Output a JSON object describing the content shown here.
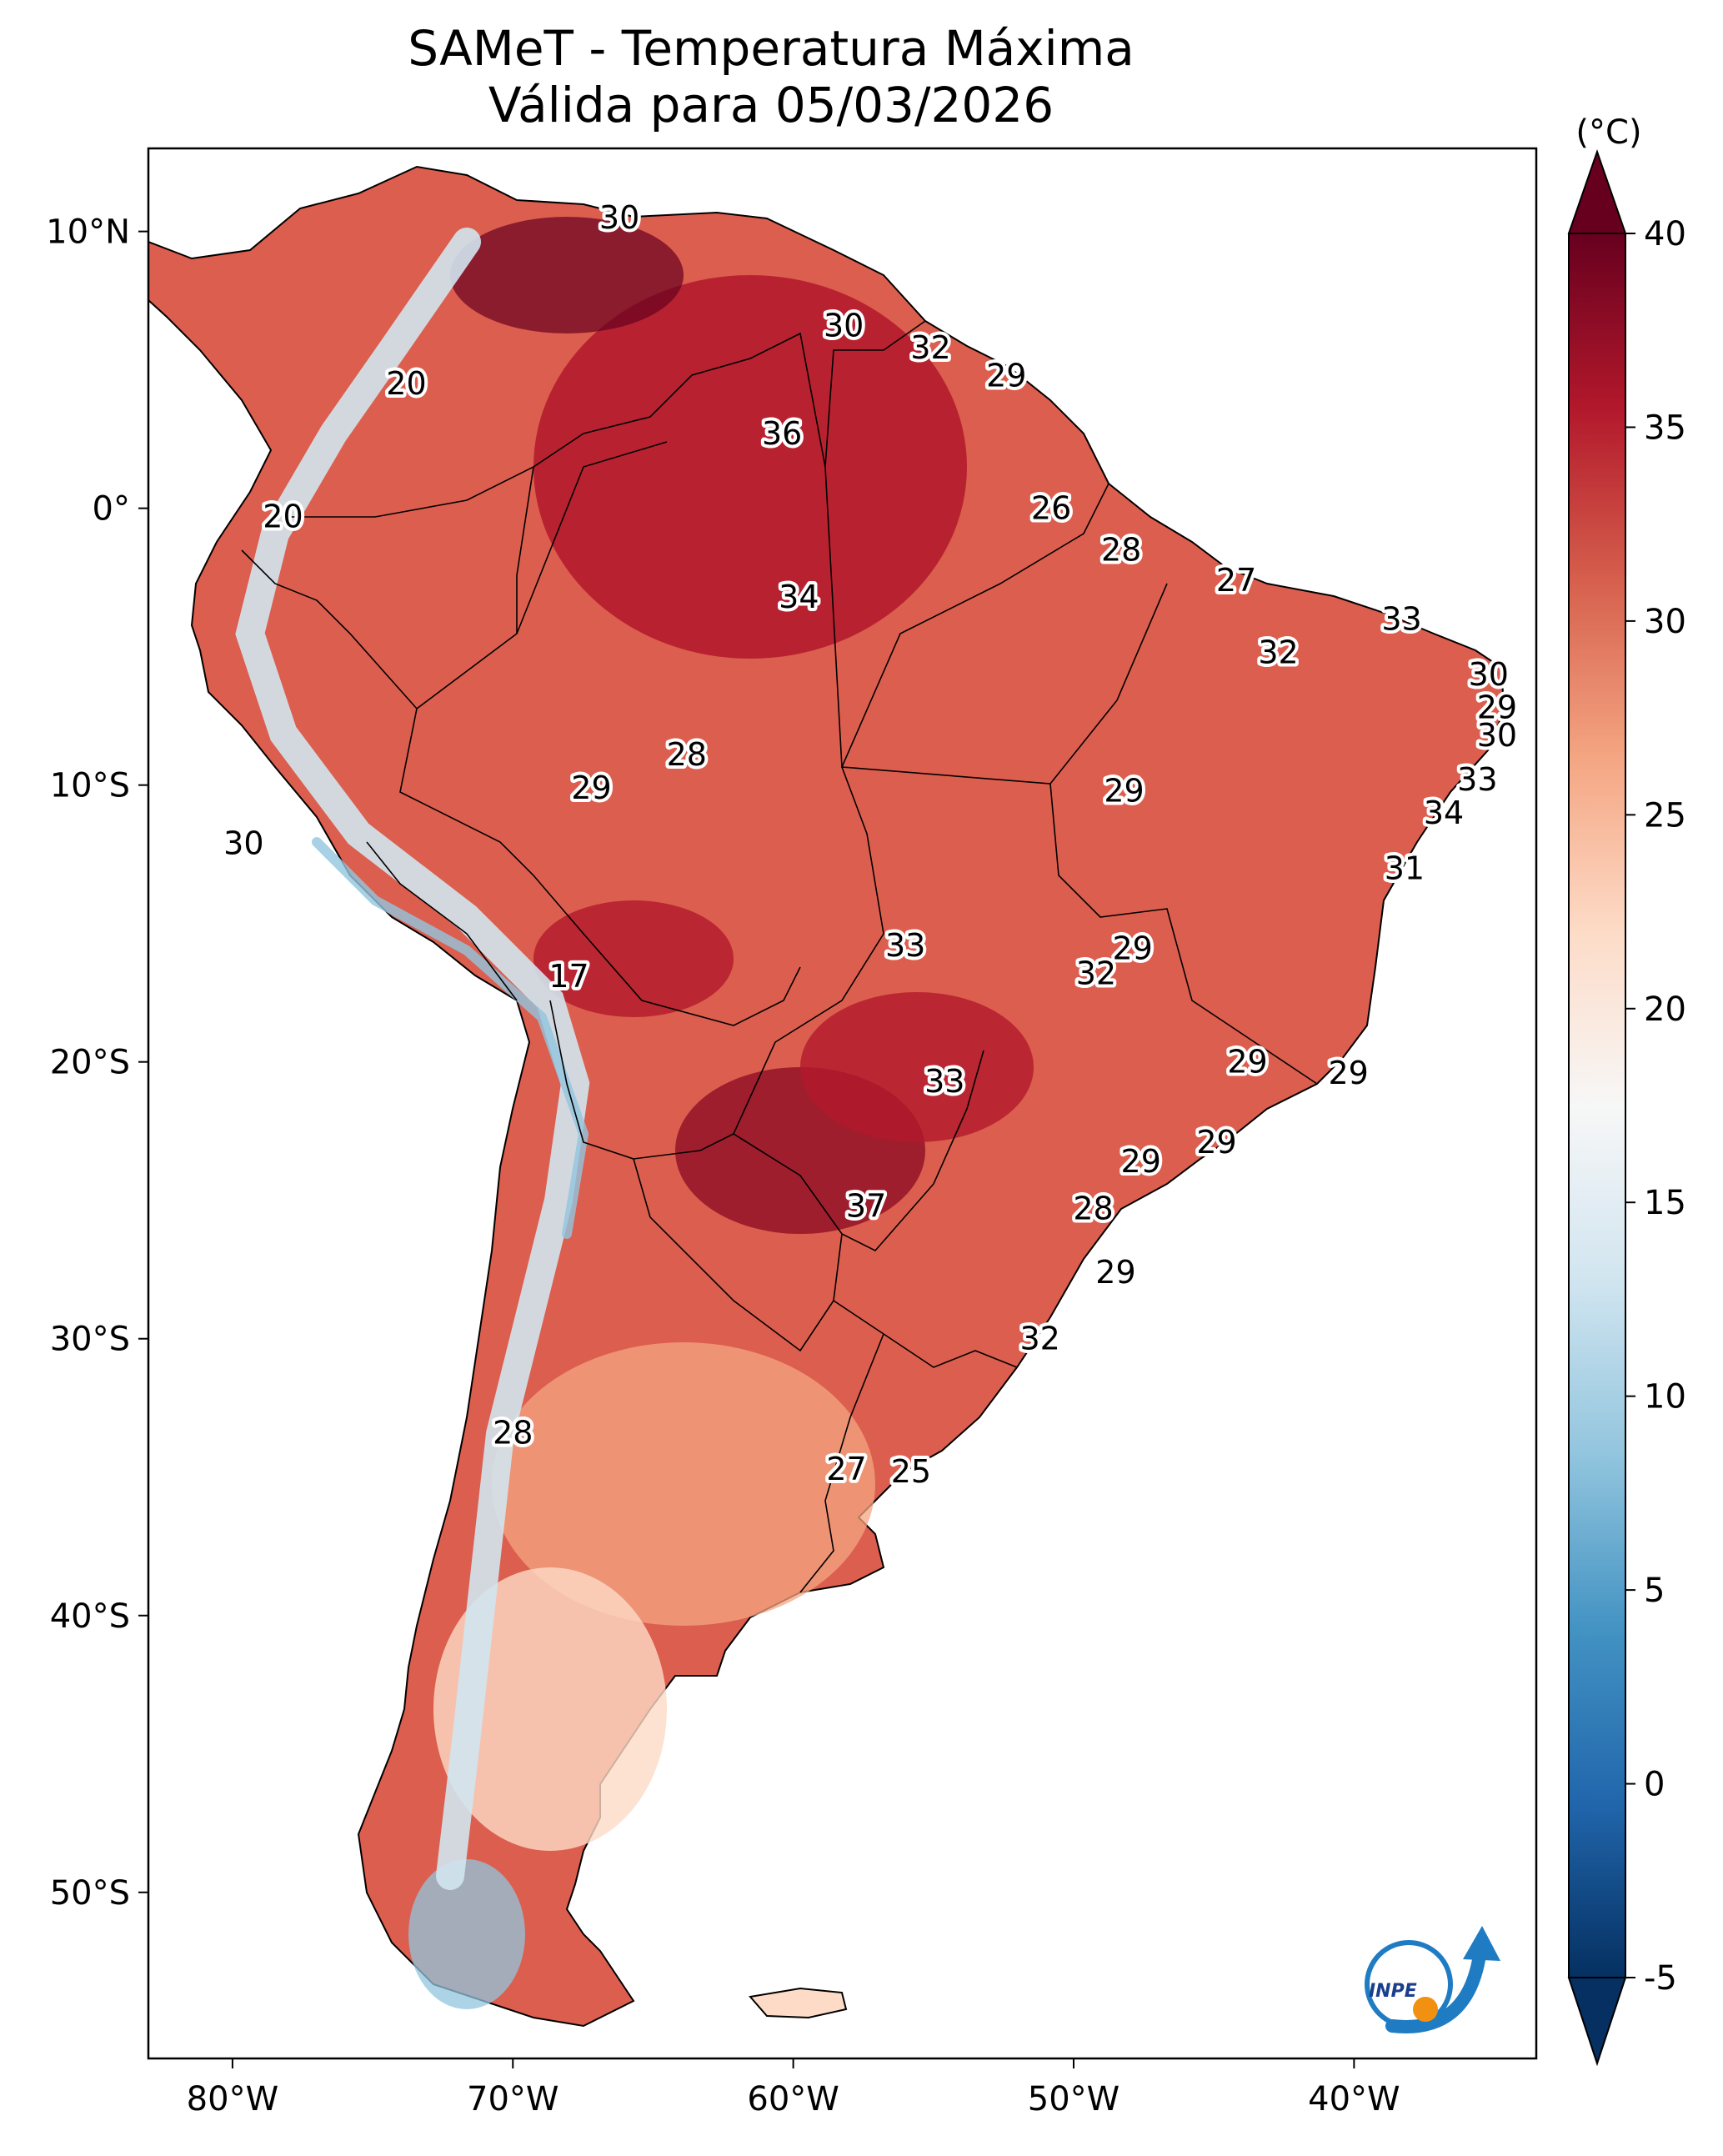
{
  "title": {
    "line1": "SAMeT - Temperatura Máxima",
    "line2": "Válida para 05/03/2026"
  },
  "map": {
    "lat_ticks": [
      "10°N",
      "0°",
      "10°S",
      "20°S",
      "30°S",
      "40°S",
      "50°S"
    ],
    "lon_ticks": [
      "80°W",
      "70°W",
      "60°W",
      "50°W",
      "40°W"
    ],
    "extent": {
      "lon": [
        -83,
        -33.5
      ],
      "lat": [
        -56,
        13
      ]
    }
  },
  "colorbar": {
    "unit": "(°C)",
    "ticks": [
      "40",
      "35",
      "30",
      "25",
      "20",
      "15",
      "10",
      "5",
      "0",
      "-5"
    ],
    "colors": [
      "#053061",
      "#2166ac",
      "#4393c3",
      "#92c5de",
      "#d1e5f0",
      "#f7f7f7",
      "#fddbc7",
      "#f4a582",
      "#d6604d",
      "#b2182b",
      "#67001f"
    ],
    "range": [
      -5,
      40
    ]
  },
  "logo": {
    "text": "INPE"
  },
  "labels": [
    {
      "text": "30",
      "lon": -66.2,
      "lat": 10.5
    },
    {
      "text": "30",
      "lon": -58.2,
      "lat": 6.6
    },
    {
      "text": "32",
      "lon": -55.1,
      "lat": 5.8
    },
    {
      "text": "29",
      "lon": -52.4,
      "lat": 4.8
    },
    {
      "text": "20",
      "lon": -73.8,
      "lat": 4.5
    },
    {
      "text": "36",
      "lon": -60.4,
      "lat": 2.7
    },
    {
      "text": "20",
      "lon": -78.2,
      "lat": -0.3
    },
    {
      "text": "26",
      "lon": -50.8,
      "lat": -0.0
    },
    {
      "text": "28",
      "lon": -48.3,
      "lat": -1.5
    },
    {
      "text": "27",
      "lon": -44.2,
      "lat": -2.6
    },
    {
      "text": "34",
      "lon": -59.8,
      "lat": -3.2
    },
    {
      "text": "33",
      "lon": -38.3,
      "lat": -4.0
    },
    {
      "text": "32",
      "lon": -42.7,
      "lat": -5.2
    },
    {
      "text": "30",
      "lon": -35.2,
      "lat": -6.0
    },
    {
      "text": "29",
      "lon": -34.9,
      "lat": -7.2
    },
    {
      "text": "30",
      "lon": -34.9,
      "lat": -8.2
    },
    {
      "text": "28",
      "lon": -63.8,
      "lat": -8.9
    },
    {
      "text": "29",
      "lon": -67.2,
      "lat": -10.1
    },
    {
      "text": "29",
      "lon": -48.2,
      "lat": -10.2
    },
    {
      "text": "33",
      "lon": -35.6,
      "lat": -9.8
    },
    {
      "text": "34",
      "lon": -36.8,
      "lat": -11.0
    },
    {
      "text": "30",
      "lon": -79.6,
      "lat": -12.1
    },
    {
      "text": "31",
      "lon": -38.2,
      "lat": -13.0
    },
    {
      "text": "33",
      "lon": -56.0,
      "lat": -15.8
    },
    {
      "text": "29",
      "lon": -47.9,
      "lat": -15.9
    },
    {
      "text": "32",
      "lon": -49.2,
      "lat": -16.8
    },
    {
      "text": "17",
      "lon": -68.0,
      "lat": -16.9
    },
    {
      "text": "29",
      "lon": -43.8,
      "lat": -20.0
    },
    {
      "text": "29",
      "lon": -40.2,
      "lat": -20.4
    },
    {
      "text": "33",
      "lon": -54.6,
      "lat": -20.7
    },
    {
      "text": "29",
      "lon": -44.9,
      "lat": -22.9
    },
    {
      "text": "29",
      "lon": -47.6,
      "lat": -23.6
    },
    {
      "text": "37",
      "lon": -57.4,
      "lat": -25.2
    },
    {
      "text": "28",
      "lon": -49.3,
      "lat": -25.3
    },
    {
      "text": "29",
      "lon": -48.5,
      "lat": -27.6
    },
    {
      "text": "32",
      "lon": -51.2,
      "lat": -30.0
    },
    {
      "text": "28",
      "lon": -70.0,
      "lat": -33.4
    },
    {
      "text": "27",
      "lon": -58.1,
      "lat": -34.7
    },
    {
      "text": "25",
      "lon": -55.8,
      "lat": -34.8
    }
  ]
}
